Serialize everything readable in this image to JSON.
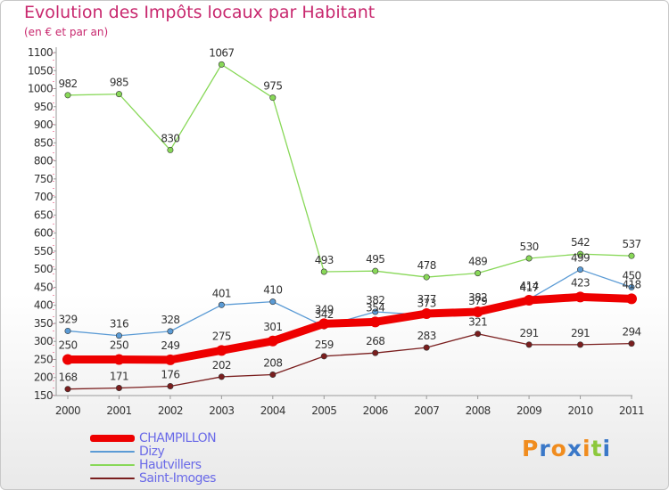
{
  "title": "Evolution des Impôts locaux par Habitant",
  "subtitle": "(en € et par an)",
  "chart_data": {
    "type": "line",
    "x": [
      "2000",
      "2001",
      "2002",
      "2003",
      "2004",
      "2005",
      "2006",
      "2007",
      "2008",
      "2009",
      "2010",
      "2011"
    ],
    "ylim": [
      150,
      1100
    ],
    "yticks": [
      150,
      200,
      250,
      300,
      350,
      400,
      450,
      500,
      550,
      600,
      650,
      700,
      750,
      800,
      850,
      900,
      950,
      1000,
      1050,
      1100
    ],
    "grid": false,
    "legend_position": "bottom-left",
    "series": [
      {
        "name": "CHAMPILLON",
        "color": "#ee0000",
        "values": [
          250,
          250,
          249,
          275,
          301,
          349,
          354,
          377,
          382,
          414,
          423,
          418
        ],
        "labels": [
          "250",
          "250",
          "249",
          "275",
          "301",
          "349",
          "354",
          "377",
          "382",
          "414",
          "423",
          "418"
        ]
      },
      {
        "name": "Dizy",
        "color": "#5b9bd5",
        "values": [
          329,
          316,
          328,
          401,
          410,
          342,
          382,
          373,
          379,
          417,
          499,
          450
        ],
        "labels": [
          "329",
          "316",
          "328",
          "401",
          "410",
          "342",
          "382",
          "373",
          "379",
          "417",
          "499",
          "450"
        ]
      },
      {
        "name": "Hautvillers",
        "color": "#88d858",
        "values": [
          982,
          985,
          830,
          1067,
          975,
          493,
          495,
          478,
          489,
          530,
          542,
          537
        ],
        "labels": [
          "982",
          "985",
          "830",
          "1067",
          "975",
          "493",
          "495",
          "478",
          "489",
          "530",
          "542",
          "537"
        ]
      },
      {
        "name": "Saint-Imoges",
        "color": "#7a1e1e",
        "values": [
          168,
          171,
          176,
          202,
          208,
          259,
          268,
          283,
          321,
          291,
          291,
          294
        ],
        "labels": [
          "168",
          "171",
          "176",
          "202",
          "208",
          "259",
          "268",
          "283",
          "321",
          "291",
          "291",
          "294"
        ]
      }
    ]
  },
  "legend": {
    "items": [
      {
        "label": "CHAMPILLON",
        "color": "#ee0000"
      },
      {
        "label": "Dizy",
        "color": "#5b9bd5"
      },
      {
        "label": "Hautvillers",
        "color": "#88d858"
      },
      {
        "label": "Saint-Imoges",
        "color": "#7a1e1e"
      }
    ]
  },
  "logo": {
    "text": "Proxiti",
    "letter_colors": [
      "#f08c1e",
      "#3a78c8",
      "#f08c1e",
      "#3a78c8",
      "#f08c1e",
      "#8cc83c",
      "#3a78c8"
    ]
  }
}
